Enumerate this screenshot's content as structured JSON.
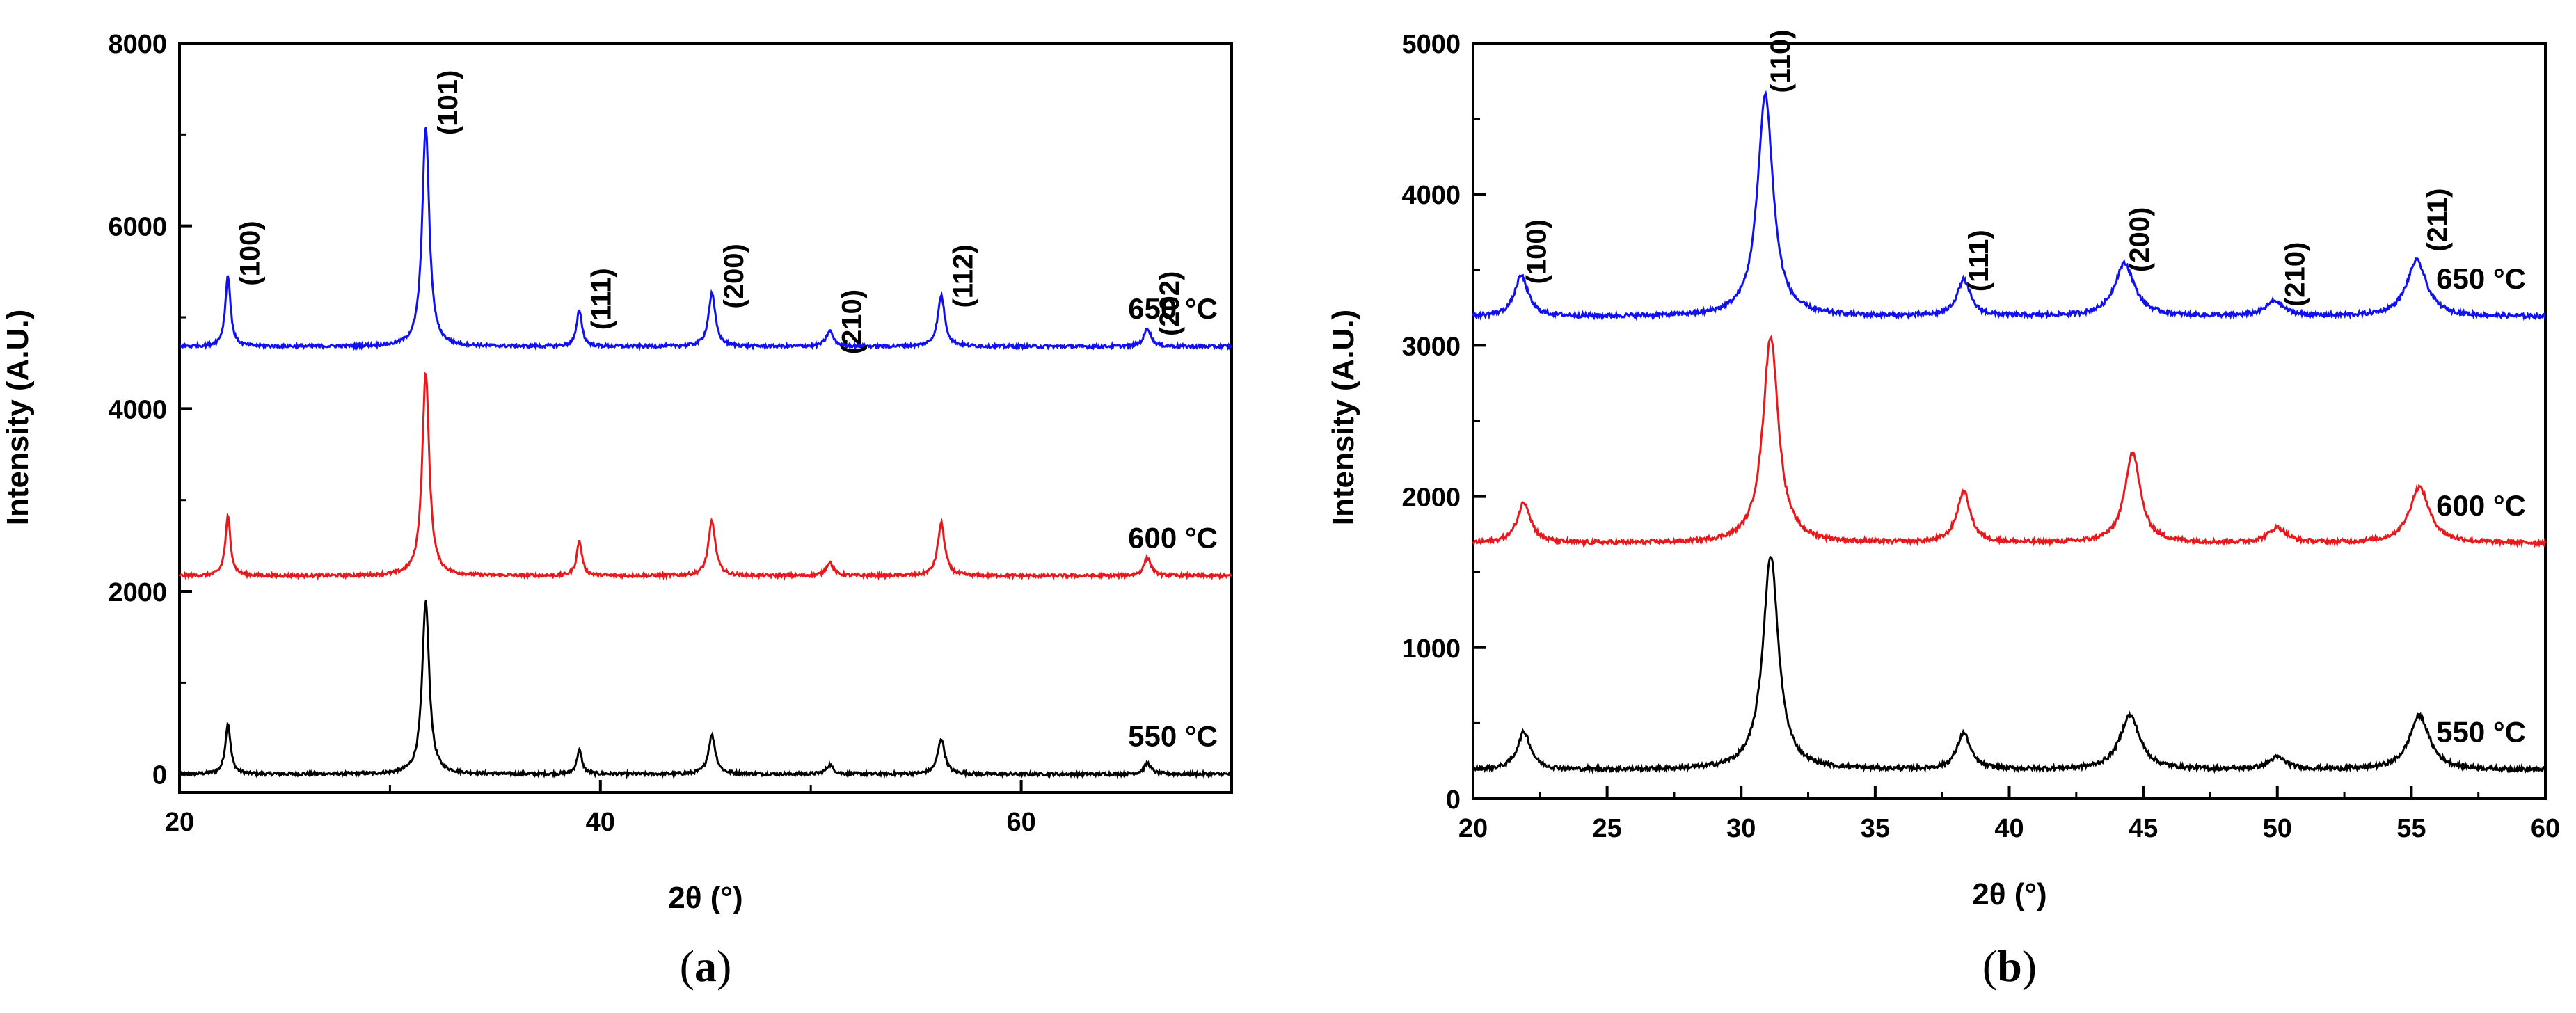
{
  "chart_data": [
    {
      "panel": "a",
      "panel_label": "(a)",
      "panel_letter": "a",
      "type": "line",
      "xlabel": "2θ (°)",
      "ylabel": "Intensity (A.U.)",
      "xlim": [
        20,
        70
      ],
      "ylim": [
        -200,
        8000
      ],
      "xticks": [
        20,
        40,
        60
      ],
      "yticks": [
        0,
        2000,
        4000,
        6000,
        8000
      ],
      "series": [
        {
          "name": "550 °C",
          "label": "550 °C",
          "color": "#000000",
          "baseline": 0,
          "peaks": [
            [
              22.3,
              560,
              0.15
            ],
            [
              31.7,
              1900,
              0.2
            ],
            [
              39.0,
              260,
              0.15
            ],
            [
              45.3,
              430,
              0.2
            ],
            [
              50.9,
              100,
              0.2
            ],
            [
              56.2,
              390,
              0.2
            ],
            [
              66.0,
              120,
              0.2
            ]
          ]
        },
        {
          "name": "600 °C",
          "label": "600 °C",
          "color": "#e8191c",
          "baseline": 2170,
          "peaks": [
            [
              22.3,
              650,
              0.15
            ],
            [
              31.7,
              2230,
              0.2
            ],
            [
              39.0,
              380,
              0.15
            ],
            [
              45.3,
              600,
              0.2
            ],
            [
              50.9,
              150,
              0.2
            ],
            [
              56.2,
              580,
              0.2
            ],
            [
              66.0,
              200,
              0.2
            ]
          ]
        },
        {
          "name": "650 °C",
          "label": "650 °C",
          "color": "#1010f0",
          "baseline": 4680,
          "peaks": [
            [
              22.3,
              780,
              0.15
            ],
            [
              31.7,
              2420,
              0.2
            ],
            [
              39.0,
              400,
              0.15
            ],
            [
              45.3,
              580,
              0.2
            ],
            [
              50.9,
              170,
              0.2
            ],
            [
              56.2,
              560,
              0.2
            ],
            [
              66.0,
              200,
              0.2
            ]
          ]
        }
      ],
      "annotations": [
        {
          "text": "(100)",
          "x": 22.3,
          "y": 5700
        },
        {
          "text": "(101)",
          "x": 31.7,
          "y": 7350
        },
        {
          "text": "(111)",
          "x": 39.0,
          "y": 5200
        },
        {
          "text": "(200)",
          "x": 45.3,
          "y": 5450
        },
        {
          "text": "(210)",
          "x": 50.9,
          "y": 4950
        },
        {
          "text": "(112)",
          "x": 56.2,
          "y": 5450
        },
        {
          "text": "(202)",
          "x": 66.0,
          "y": 5150
        }
      ]
    },
    {
      "panel": "b",
      "panel_label": "(b)",
      "panel_letter": "b",
      "type": "line",
      "xlabel": "2θ (°)",
      "ylabel": "Intensity (A.U.)",
      "xlim": [
        20,
        60
      ],
      "ylim": [
        0,
        5000
      ],
      "xticks": [
        20,
        25,
        30,
        35,
        40,
        45,
        50,
        55,
        60
      ],
      "yticks": [
        0,
        1000,
        2000,
        3000,
        4000,
        5000
      ],
      "series": [
        {
          "name": "550 °C",
          "label": "550 °C",
          "color": "#000000",
          "baseline": 190,
          "peaks": [
            [
              21.9,
              250,
              0.3
            ],
            [
              31.1,
              1420,
              0.35
            ],
            [
              38.3,
              240,
              0.3
            ],
            [
              44.5,
              360,
              0.45
            ],
            [
              50.0,
              80,
              0.4
            ],
            [
              55.3,
              360,
              0.45
            ]
          ]
        },
        {
          "name": "600 °C",
          "label": "600 °C",
          "color": "#e8191c",
          "baseline": 1690,
          "peaks": [
            [
              21.9,
              270,
              0.3
            ],
            [
              31.1,
              1370,
              0.35
            ],
            [
              38.3,
              340,
              0.3
            ],
            [
              44.6,
              600,
              0.35
            ],
            [
              50.0,
              100,
              0.4
            ],
            [
              55.3,
              370,
              0.45
            ]
          ]
        },
        {
          "name": "650 °C",
          "label": "650 °C",
          "color": "#1010f0",
          "baseline": 3190,
          "peaks": [
            [
              21.8,
              270,
              0.3
            ],
            [
              30.9,
              1470,
              0.35
            ],
            [
              38.3,
              240,
              0.3
            ],
            [
              44.3,
              350,
              0.45
            ],
            [
              49.9,
              100,
              0.4
            ],
            [
              55.2,
              370,
              0.45
            ]
          ]
        }
      ],
      "annotations": [
        {
          "text": "(100)",
          "x": 21.8,
          "y": 3620
        },
        {
          "text": "(110)",
          "x": 30.9,
          "y": 4880
        },
        {
          "text": "(111)",
          "x": 38.3,
          "y": 3560
        },
        {
          "text": "(200)",
          "x": 44.3,
          "y": 3700
        },
        {
          "text": "(210)",
          "x": 50.1,
          "y": 3470
        },
        {
          "text": "(211)",
          "x": 55.4,
          "y": 3830
        }
      ]
    }
  ]
}
